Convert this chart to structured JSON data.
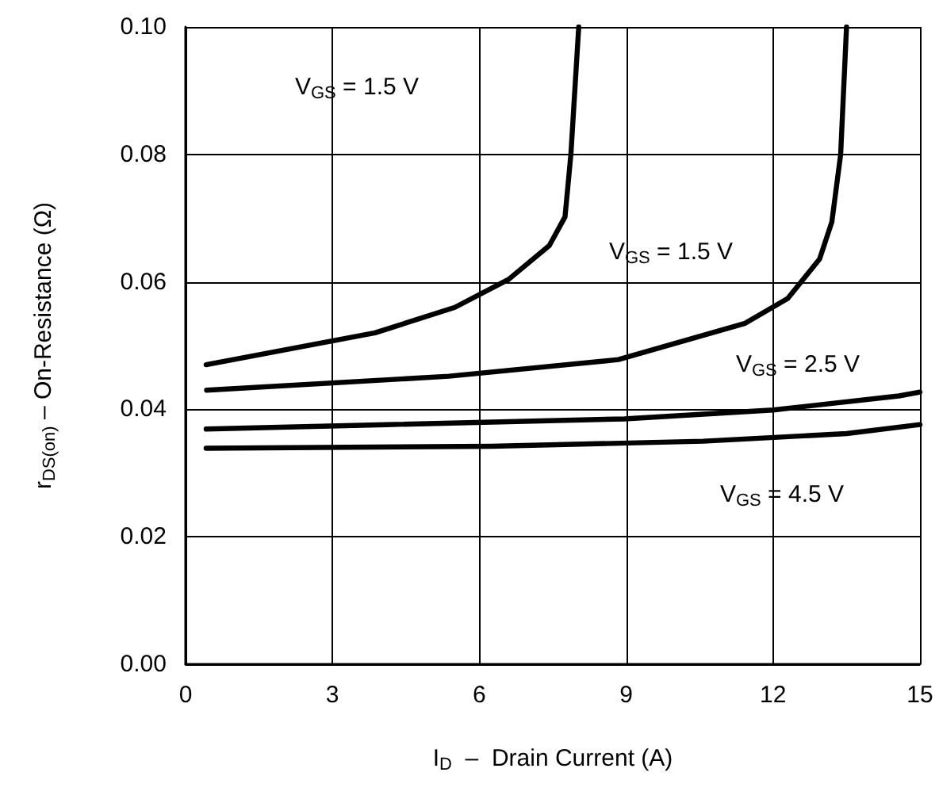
{
  "chart_data": {
    "type": "line",
    "xlabel": "I$_{D}$  –  Drain Current (A)",
    "ylabel": "r$_{DS(on)}$ – On-Resistance (Ω)",
    "xlim": [
      0,
      15
    ],
    "xticks": [
      0,
      3,
      6,
      9,
      12,
      15
    ],
    "ylim": [
      0,
      0.1
    ],
    "yticks": [
      {
        "value": 0,
        "label": "0.00"
      },
      {
        "value": 0.02,
        "label": "0.02"
      },
      {
        "value": 0.04,
        "label": "0.04"
      },
      {
        "value": 0.06,
        "label": "0.06"
      },
      {
        "value": 0.08,
        "label": "0.08"
      },
      {
        "value": 0.1,
        "label": "0.10"
      }
    ],
    "grid": true,
    "marker": "none",
    "line_style": "solid",
    "series": [
      {
        "color": "#000000",
        "x": [
          0.42,
          3.87,
          5.5,
          6.6,
          7.43,
          7.75,
          7.87,
          8.03
        ],
        "values": [
          0.047,
          0.052,
          0.056,
          0.0604,
          0.0657,
          0.0702,
          0.08,
          0.1
        ]
      },
      {
        "color": "#000000",
        "x": [
          0.43,
          5.38,
          8.84,
          11.43,
          12.3,
          12.95,
          13.2,
          13.38,
          13.5
        ],
        "values": [
          0.043,
          0.0452,
          0.0478,
          0.0535,
          0.0574,
          0.0636,
          0.0694,
          0.08,
          0.1
        ]
      },
      {
        "color": "#000000",
        "x": [
          0.42,
          4.1,
          8.96,
          12.0,
          14.57,
          15
        ],
        "values": [
          0.0369,
          0.0376,
          0.0385,
          0.0399,
          0.0421,
          0.0427
        ]
      },
      {
        "color": "#000000",
        "x": [
          0.42,
          6.25,
          10.57,
          13.5,
          15
        ],
        "values": [
          0.0339,
          0.0342,
          0.035,
          0.0362,
          0.0376
        ]
      }
    ],
    "annotations": [
      "V$_{GS}$ = 1.5 V",
      "V$_{GS}$ = 1.5 V",
      "V$_{GS}$ = 2.5 V",
      "V$_{GS}$ = 4.5 V"
    ]
  }
}
